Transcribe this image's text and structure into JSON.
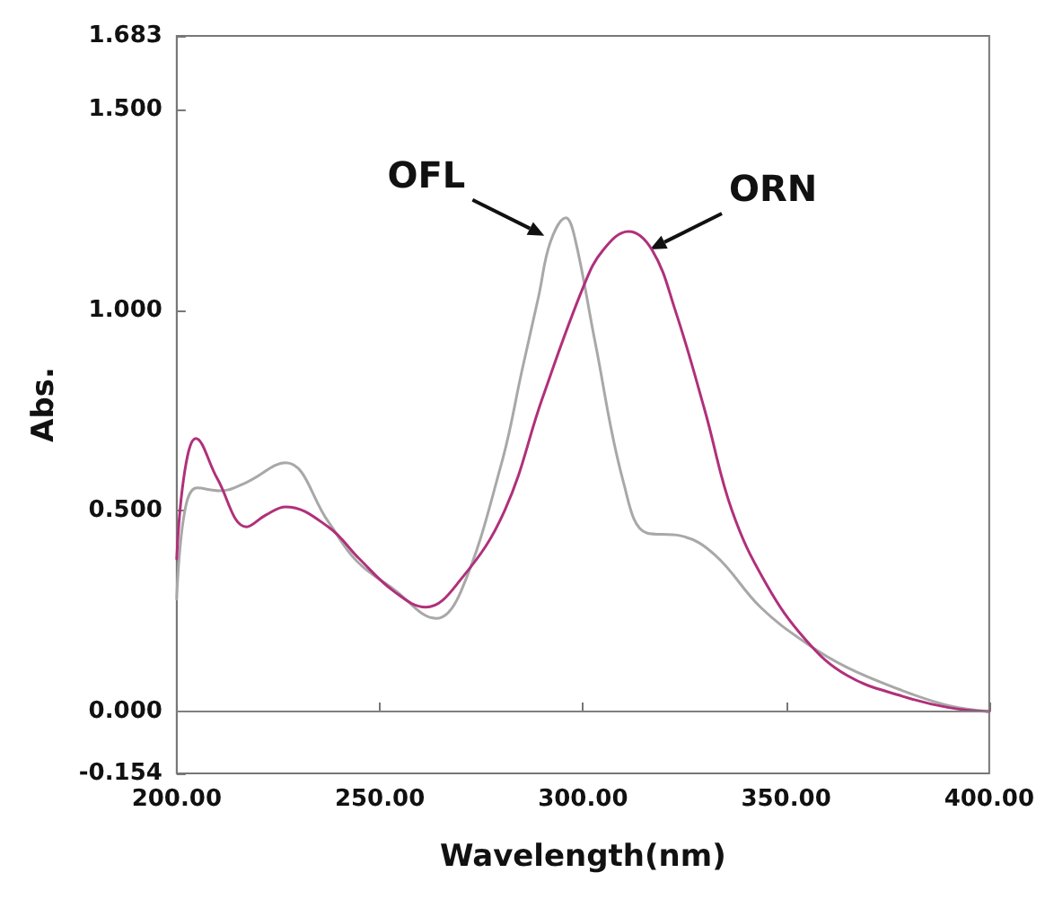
{
  "chart_data": {
    "type": "line",
    "xlabel": "Wavelength(nm)",
    "ylabel": "Abs.",
    "x": [
      200,
      202,
      205,
      210.6,
      217,
      226.8,
      237.3,
      244.3,
      253.4,
      263.9,
      270,
      280,
      285,
      289.1,
      292,
      295.8,
      298,
      303,
      310,
      315.7,
      324,
      332.5,
      343.7,
      355,
      365,
      378.7,
      390,
      400
    ],
    "series": [
      {
        "name": "OFL",
        "color": "#a8a8a8",
        "values": [
          0.28,
          0.5,
          0.557,
          0.55,
          0.57,
          0.62,
          0.473,
          0.375,
          0.305,
          0.232,
          0.3,
          0.62,
          0.85,
          1.035,
          1.17,
          1.23,
          1.18,
          0.92,
          0.57,
          0.445,
          0.438,
          0.39,
          0.26,
          0.17,
          0.11,
          0.052,
          0.015,
          0.0
        ]
      },
      {
        "name": "ORN",
        "color": "#b0307a",
        "x": [
          200,
          202,
          204.7,
          210,
          217.2,
          222,
          226.8,
          237.3,
          245,
          253.4,
          261.3,
          270,
          280.7,
          290,
          300.3,
          305,
          311.2,
          317,
          322.7,
          330,
          336.7,
          345,
          354.9,
          365,
          378.7,
          390,
          400
        ],
        "values": [
          0.38,
          0.6,
          0.68,
          0.58,
          0.46,
          0.49,
          0.51,
          0.46,
          0.38,
          0.3,
          0.26,
          0.33,
          0.5,
          0.78,
          1.063,
          1.15,
          1.196,
          1.15,
          1.0,
          0.75,
          0.5,
          0.32,
          0.178,
          0.09,
          0.038,
          0.01,
          0.0
        ]
      }
    ],
    "xlim": [
      200,
      400
    ],
    "xticks": [
      {
        "value": 200,
        "label": "200.00"
      },
      {
        "value": 250,
        "label": "250.00"
      },
      {
        "value": 300,
        "label": "300.00"
      },
      {
        "value": 350,
        "label": "350.00"
      },
      {
        "value": 400,
        "label": "400.00"
      }
    ],
    "ylim": [
      -0.154,
      1.683
    ],
    "yticks": [
      -0.154,
      {
        "value": 0,
        "label": "0.000"
      },
      {
        "value": 0.5,
        "label": "0.500"
      },
      {
        "value": 1,
        "label": "1.000"
      },
      {
        "value": 1.5,
        "label": "1.500"
      },
      1.683
    ],
    "ref_lines": [
      {
        "axis": "y",
        "value": 0,
        "color": "#808080"
      }
    ],
    "grid": false,
    "legend": false,
    "marker": "none",
    "line_style": "solid"
  }
}
